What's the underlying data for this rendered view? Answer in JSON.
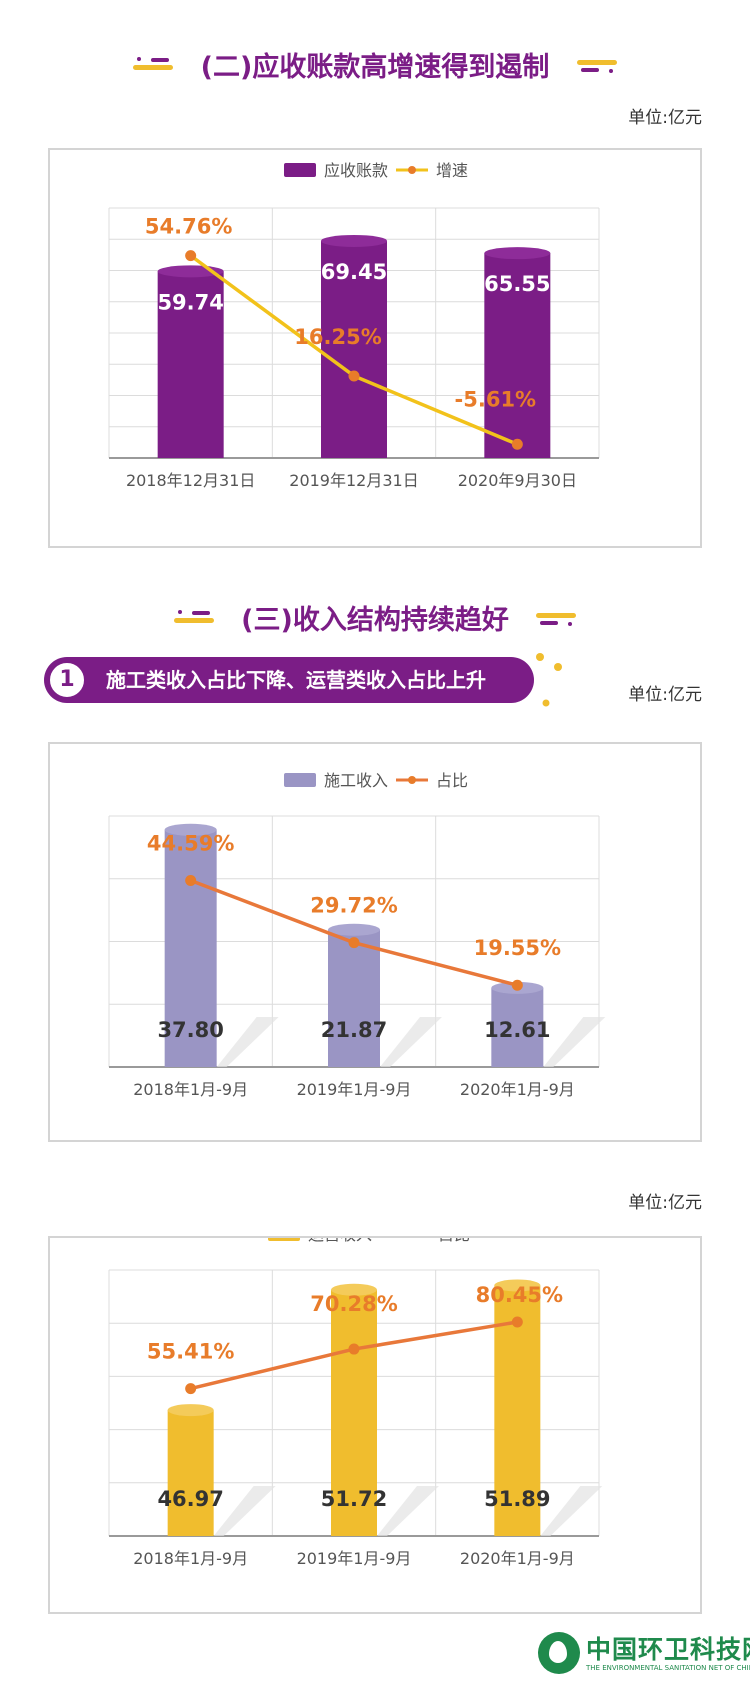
{
  "sections": {
    "s2_title": "(二)应收账款高增速得到遏制",
    "s3_title": "(三)收入结构持续趋好",
    "banner_num": "1",
    "banner_text": "施工类收入占比下降、运营类收入占比上升"
  },
  "units": {
    "u1": "单位:亿元",
    "u2": "单位:亿元",
    "u3": "单位:亿元"
  },
  "logo": {
    "text": "中国环卫科技网",
    "sub": "THE ENVIRONMENTAL SANITATION NET OF CHINA"
  },
  "colors": {
    "purple": "#7b1d86",
    "yellow_line": "#f2c21b",
    "orange": "#e87c2a",
    "lavender": "#9a95c4",
    "gold": "#f0bd2e"
  },
  "chart_data": [
    {
      "type": "bar",
      "legend": [
        "应收账款",
        "增速"
      ],
      "categories": [
        "2018年12月31日",
        "2019年12月31日",
        "2020年9月30日"
      ],
      "series": [
        {
          "name": "应收账款",
          "values": [
            59.74,
            69.45,
            65.55
          ],
          "labels": [
            "59.74",
            "69.45",
            "65.55"
          ]
        },
        {
          "name": "增速",
          "values": [
            54.76,
            16.25,
            -5.61
          ],
          "labels": [
            "54.76%",
            "16.25%",
            "-5.61%"
          ]
        }
      ],
      "bar_ylim": [
        0,
        80
      ],
      "line_ylim": [
        -10,
        70
      ]
    },
    {
      "type": "bar",
      "legend": [
        "施工收入",
        "占比"
      ],
      "categories": [
        "2018年1月-9月",
        "2019年1月-9月",
        "2020年1月-9月"
      ],
      "series": [
        {
          "name": "施工收入",
          "values": [
            37.8,
            21.87,
            12.61
          ],
          "labels": [
            "37.80",
            "21.87",
            "12.61"
          ]
        },
        {
          "name": "占比",
          "values": [
            44.59,
            29.72,
            19.55
          ],
          "labels": [
            "44.59%",
            "29.72%",
            "19.55%"
          ]
        }
      ],
      "bar_ylim": [
        0,
        40
      ],
      "line_ylim": [
        0,
        60
      ]
    },
    {
      "type": "bar",
      "legend": [
        "运营收入",
        "占比"
      ],
      "categories": [
        "2018年1月-9月",
        "2019年1月-9月",
        "2020年1月-9月"
      ],
      "series": [
        {
          "name": "运营收入",
          "values": [
            46.97,
            51.72,
            51.89
          ],
          "labels": [
            "46.97",
            "51.72",
            "51.89"
          ]
        },
        {
          "name": "占比",
          "values": [
            55.41,
            70.28,
            80.45
          ],
          "labels": [
            "55.41%",
            "70.28%",
            "80.45%"
          ]
        }
      ],
      "bar_ylim": [
        42,
        52.5
      ],
      "line_ylim": [
        0,
        100
      ]
    }
  ]
}
